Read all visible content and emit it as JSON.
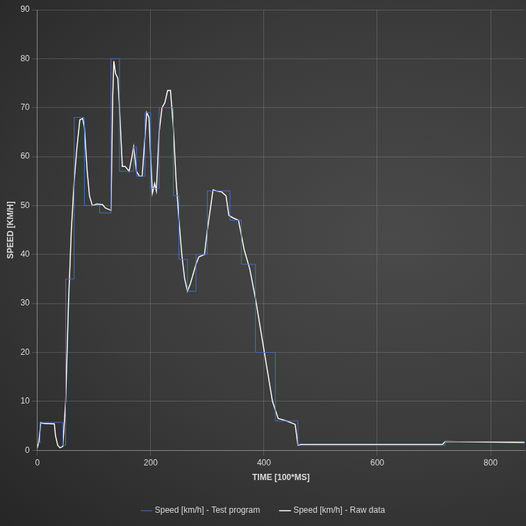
{
  "chart_data": {
    "type": "line",
    "x_label": "TIME [100*MS]",
    "y_label": "SPEED [KM/H]",
    "xlim": [
      0,
      860
    ],
    "xticks": [
      0,
      200,
      400,
      600,
      800
    ],
    "ylim": [
      0,
      90
    ],
    "yticks": [
      0,
      10,
      20,
      30,
      40,
      50,
      60,
      70,
      80,
      90
    ],
    "grid": true,
    "legend": "bottom",
    "series": [
      {
        "name": "Speed [km/h] - Test program",
        "color": "#4472c4",
        "line_style": "stepped",
        "x": [
          0,
          5,
          45,
          50,
          65,
          83,
          110,
          130,
          145,
          170,
          175,
          190,
          200,
          215,
          240,
          250,
          265,
          280,
          300,
          340,
          360,
          385,
          420,
          460,
          720,
          860
        ],
        "values": [
          1.5,
          5.7,
          1,
          35,
          68,
          50,
          48.5,
          80,
          57,
          62,
          56,
          69,
          53.5,
          70,
          52,
          39,
          32.5,
          40,
          53,
          47,
          38,
          20,
          6,
          1,
          1.8,
          1.6
        ]
      },
      {
        "name": "Speed [km/h] - Raw data",
        "color": "#ffffff",
        "line_style": "solid",
        "x": [
          0,
          3,
          6,
          10,
          30,
          32,
          36,
          40,
          45,
          50,
          55,
          60,
          65,
          70,
          75,
          80,
          83,
          88,
          92,
          97,
          105,
          115,
          120,
          130,
          133,
          135,
          138,
          142,
          145,
          150,
          155,
          162,
          167,
          170,
          175,
          180,
          185,
          190,
          193,
          197,
          200,
          203,
          207,
          210,
          215,
          220,
          225,
          230,
          235,
          240,
          245,
          250,
          255,
          260,
          265,
          270,
          280,
          285,
          295,
          300,
          305,
          310,
          315,
          325,
          333,
          338,
          345,
          355,
          365,
          375,
          385,
          395,
          405,
          415,
          425,
          440,
          455,
          460,
          465,
          480,
          600,
          715,
          720,
          860
        ],
        "values": [
          0.5,
          2,
          5.7,
          5.5,
          5.4,
          3,
          1,
          0.5,
          0.8,
          10,
          30,
          45,
          55,
          62,
          67.5,
          67.8,
          66,
          57,
          52,
          50,
          50.3,
          50.2,
          49.5,
          49,
          72,
          79.5,
          77,
          76,
          70,
          58,
          58,
          57,
          60,
          62,
          57,
          56,
          56,
          64,
          69,
          68,
          60,
          52.5,
          54.5,
          53,
          65,
          70,
          71,
          73.5,
          73.5,
          66,
          55,
          47,
          40,
          35,
          32.5,
          34,
          38,
          39.5,
          40,
          45,
          49,
          53.2,
          53,
          52.8,
          52,
          48,
          47.5,
          47,
          41,
          37,
          31,
          24,
          17,
          10,
          6.5,
          6,
          5.3,
          1,
          1.2,
          1.2,
          1.2,
          1.2,
          1.8,
          1.6
        ]
      }
    ]
  }
}
